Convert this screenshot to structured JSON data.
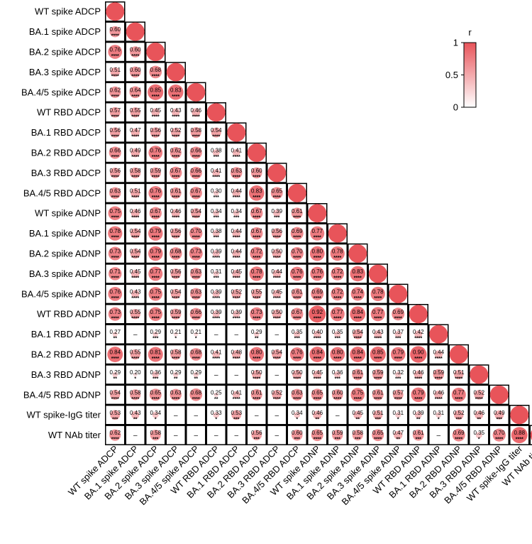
{
  "chart_data": {
    "type": "heatmap",
    "variables": [
      "WT spike ADCP",
      "BA.1 spike ADCP",
      "BA.2 spike ADCP",
      "BA.3 spike ADCP",
      "BA.4/5 spike ADCP",
      "WT RBD ADCP",
      "BA.1 RBD ADCP",
      "BA.2 RBD ADCP",
      "BA.3 RBD ADCP",
      "BA.4/5 RBD ADCP",
      "WT spike ADNP",
      "BA.1 spike ADNP",
      "BA.2 spike ADNP",
      "BA.3 spike ADNP",
      "BA.4/5 spike ADNP",
      "WT RBD ADNP",
      "BA.1 RBD ADNP",
      "BA.2 RBD ADNP",
      "BA.3 RBD ADNP",
      "BA.4/5 RBD ADNP",
      "WT spike-IgG titer",
      "WT NAb titer"
    ],
    "rows": [
      {
        "label": "WT spike ADCP",
        "values": [
          1
        ],
        "sig": [
          ""
        ],
        "text": [
          ""
        ]
      },
      {
        "label": "BA.1 spike ADCP",
        "values": [
          0.6,
          1
        ],
        "sig": [
          "****",
          ""
        ],
        "text": [
          "0.60",
          ""
        ]
      },
      {
        "label": "BA.2 spike ADCP",
        "values": [
          0.76,
          0.6,
          1
        ],
        "sig": [
          "****",
          "****",
          ""
        ],
        "text": [
          "0.76",
          "0.60",
          ""
        ]
      },
      {
        "label": "BA.3 spike ADCP",
        "values": [
          0.51,
          0.6,
          0.68,
          1
        ],
        "sig": [
          "****",
          "****",
          "****",
          ""
        ],
        "text": [
          "0.51",
          "0.60",
          "0.68",
          ""
        ]
      },
      {
        "label": "BA.4/5 spike ADCP",
        "values": [
          0.62,
          0.64,
          0.85,
          0.83,
          1
        ],
        "sig": [
          "****",
          "****",
          "****",
          "****",
          ""
        ],
        "text": [
          "0.62",
          "0.64",
          "0.85",
          "0.83",
          ""
        ]
      },
      {
        "label": "WT RBD ADCP",
        "values": [
          0.57,
          0.55,
          0.45,
          0.43,
          0.46,
          1
        ],
        "sig": [
          "****",
          "****",
          "****",
          "****",
          "****",
          ""
        ],
        "text": [
          "0.57",
          "0.55",
          "0.45",
          "0.43",
          "0.46",
          ""
        ]
      },
      {
        "label": "BA.1 RBD ADCP",
        "values": [
          0.56,
          0.47,
          0.56,
          0.52,
          0.58,
          0.54,
          1
        ],
        "sig": [
          "****",
          "****",
          "****",
          "****",
          "****",
          "****",
          ""
        ],
        "text": [
          "0.56",
          "0.47",
          "0.56",
          "0.52",
          "0.58",
          "0.54",
          ""
        ]
      },
      {
        "label": "BA.2 RBD ADCP",
        "values": [
          0.66,
          0.49,
          0.76,
          0.62,
          0.66,
          0.38,
          0.41,
          1
        ],
        "sig": [
          "****",
          "****",
          "****",
          "****",
          "****",
          "***",
          "****",
          ""
        ],
        "text": [
          "0.66",
          "0.49",
          "0.76",
          "0.62",
          "0.66",
          "0.38",
          "0.41",
          ""
        ]
      },
      {
        "label": "BA.3 RBD ADCP",
        "values": [
          0.56,
          0.58,
          0.59,
          0.67,
          0.66,
          0.41,
          0.63,
          0.6,
          1
        ],
        "sig": [
          "****",
          "****",
          "****",
          "****",
          "****",
          "****",
          "****",
          "****",
          ""
        ],
        "text": [
          "0.56",
          "0.58",
          "0.59",
          "0.67",
          "0.66",
          "0.41",
          "0.63",
          "0.60",
          ""
        ]
      },
      {
        "label": "BA.4/5 RBD ADCP",
        "values": [
          0.63,
          0.51,
          0.76,
          0.61,
          0.67,
          0.3,
          0.44,
          0.83,
          0.65,
          1
        ],
        "sig": [
          "****",
          "****",
          "****",
          "****",
          "****",
          "***",
          "****",
          "****",
          "****",
          ""
        ],
        "text": [
          "0.63",
          "0.51",
          "0.76",
          "0.61",
          "0.67",
          "0.30",
          "0.44",
          "0.83",
          "0.65",
          ""
        ]
      },
      {
        "label": "WT spike ADNP",
        "values": [
          0.75,
          0.46,
          0.67,
          0.46,
          0.54,
          0.34,
          0.34,
          0.67,
          0.39,
          0.61,
          1
        ],
        "sig": [
          "****",
          "****",
          "****",
          "****",
          "****",
          "***",
          "***",
          "****",
          "***",
          "****",
          ""
        ],
        "text": [
          "0.75",
          "0.46",
          "0.67",
          "0.46",
          "0.54",
          "0.34",
          "0.34",
          "0.67",
          "0.39",
          "0.61",
          ""
        ]
      },
      {
        "label": "BA.1 spike ADNP",
        "values": [
          0.78,
          0.54,
          0.79,
          0.56,
          0.7,
          0.38,
          0.44,
          0.67,
          0.56,
          0.69,
          0.77,
          1
        ],
        "sig": [
          "****",
          "****",
          "****",
          "****",
          "****",
          "***",
          "****",
          "****",
          "****",
          "****",
          "****",
          ""
        ],
        "text": [
          "0.78",
          "0.54",
          "0.79",
          "0.56",
          "0.70",
          "0.38",
          "0.44",
          "0.67",
          "0.56",
          "0.69",
          "0.77",
          ""
        ]
      },
      {
        "label": "BA.2 spike ADNP",
        "values": [
          0.73,
          0.54,
          0.79,
          0.68,
          0.73,
          0.39,
          0.44,
          0.72,
          0.5,
          0.7,
          0.8,
          0.78,
          1
        ],
        "sig": [
          "****",
          "****",
          "****",
          "****",
          "****",
          "****",
          "****",
          "****",
          "****",
          "****",
          "****",
          "****",
          ""
        ],
        "text": [
          "0.73",
          "0.54",
          "0.79",
          "0.68",
          "0.73",
          "0.39",
          "0.44",
          "0.72",
          "0.50",
          "0.70",
          "0.80",
          "0.78",
          ""
        ]
      },
      {
        "label": "BA.3 spike ADNP",
        "values": [
          0.71,
          0.45,
          0.77,
          0.56,
          0.63,
          0.31,
          0.45,
          0.78,
          0.44,
          0.76,
          0.76,
          0.72,
          0.83,
          1
        ],
        "sig": [
          "****",
          "****",
          "****",
          "****",
          "****",
          "***",
          "****",
          "****",
          "****",
          "****",
          "****",
          "****",
          "****",
          ""
        ],
        "text": [
          "0.71",
          "0.45",
          "0.77",
          "0.56",
          "0.63",
          "0.31",
          "0.45",
          "0.78",
          "0.44",
          "0.76",
          "0.76",
          "0.72",
          "0.83",
          ""
        ]
      },
      {
        "label": "BA.4/5 spike ADNP",
        "values": [
          0.76,
          0.43,
          0.75,
          0.54,
          0.63,
          0.39,
          0.52,
          0.55,
          0.45,
          0.61,
          0.69,
          0.72,
          0.74,
          0.78,
          1
        ],
        "sig": [
          "****",
          "****",
          "****",
          "****",
          "****",
          "****",
          "****",
          "****",
          "****",
          "****",
          "****",
          "****",
          "****",
          "****",
          ""
        ],
        "text": [
          "0.76",
          "0.43",
          "0.75",
          "0.54",
          "0.63",
          "0.39",
          "0.52",
          "0.55",
          "0.45",
          "0.61",
          "0.69",
          "0.72",
          "0.74",
          "0.78",
          ""
        ]
      },
      {
        "label": "WT RBD ADNP",
        "values": [
          0.73,
          0.55,
          0.75,
          0.59,
          0.66,
          0.39,
          0.39,
          0.73,
          0.5,
          0.67,
          0.92,
          0.77,
          0.84,
          0.77,
          0.69,
          1
        ],
        "sig": [
          "****",
          "****",
          "****",
          "****",
          "****",
          "****",
          "****",
          "****",
          "****",
          "****",
          "****",
          "****",
          "****",
          "****",
          "****",
          ""
        ],
        "text": [
          "0.73",
          "0.55",
          "0.75",
          "0.59",
          "0.66",
          "0.39",
          "0.39",
          "0.73",
          "0.50",
          "0.67",
          "0.92",
          "0.77",
          "0.84",
          "0.77",
          "0.69",
          ""
        ]
      },
      {
        "label": "BA.1 RBD ADNP",
        "values": [
          0.27,
          null,
          0.29,
          0.21,
          0.21,
          null,
          null,
          0.29,
          null,
          0.35,
          0.4,
          0.35,
          0.54,
          0.43,
          0.37,
          0.42,
          1
        ],
        "sig": [
          "**",
          "",
          "***",
          "*",
          "*",
          "",
          "",
          "**",
          "",
          "***",
          "****",
          "***",
          "****",
          "****",
          "***",
          "****",
          ""
        ],
        "text": [
          "0.27",
          "–",
          "0.29",
          "0.21",
          "0.21",
          "–",
          "–",
          "0.29",
          "–",
          "0.35",
          "0.40",
          "0.35",
          "0.54",
          "0.43",
          "0.37",
          "0.42",
          ""
        ]
      },
      {
        "label": "BA.2 RBD ADNP",
        "values": [
          0.84,
          0.55,
          0.81,
          0.58,
          0.68,
          0.41,
          0.48,
          0.8,
          0.54,
          0.76,
          0.84,
          0.8,
          0.84,
          0.85,
          0.79,
          0.9,
          0.44,
          1
        ],
        "sig": [
          "****",
          "****",
          "****",
          "****",
          "****",
          "****",
          "****",
          "****",
          "****",
          "****",
          "****",
          "****",
          "****",
          "****",
          "****",
          "****",
          "****",
          ""
        ],
        "text": [
          "0.84",
          "0.55",
          "0.81",
          "0.58",
          "0.68",
          "0.41",
          "0.48",
          "0.80",
          "0.54",
          "0.76",
          "0.84",
          "0.80",
          "0.84",
          "0.85",
          "0.79",
          "0.90",
          "0.44",
          ""
        ]
      },
      {
        "label": "BA.3 RBD ADNP",
        "values": [
          0.29,
          0.2,
          0.36,
          0.29,
          0.29,
          null,
          null,
          0.5,
          null,
          0.5,
          0.45,
          0.36,
          0.61,
          0.59,
          0.32,
          0.46,
          0.59,
          0.51,
          1
        ],
        "sig": [
          "**",
          "*",
          "***",
          "**",
          "**",
          "",
          "",
          "****",
          "",
          "****",
          "****",
          "***",
          "****",
          "****",
          "***",
          "****",
          "****",
          "****",
          ""
        ],
        "text": [
          "0.29",
          "0.20",
          "0.36",
          "0.29",
          "0.29",
          "–",
          "–",
          "0.50",
          "–",
          "0.50",
          "0.45",
          "0.36",
          "0.61",
          "0.59",
          "0.32",
          "0.46",
          "0.59",
          "0.51",
          ""
        ]
      },
      {
        "label": "BA.4/5 RBD ADNP",
        "values": [
          0.54,
          0.58,
          0.65,
          0.63,
          0.68,
          0.25,
          0.41,
          0.61,
          0.52,
          0.63,
          0.65,
          0.6,
          0.75,
          0.61,
          0.57,
          0.79,
          0.46,
          0.77,
          0.52,
          1
        ],
        "sig": [
          "****",
          "****",
          "****",
          "****",
          "****",
          "**",
          "****",
          "****",
          "****",
          "****",
          "****",
          "****",
          "****",
          "****",
          "****",
          "****",
          "****",
          "****",
          "****",
          ""
        ],
        "text": [
          "0.54",
          "0.58",
          "0.65",
          "0.63",
          "0.68",
          "0.25",
          "0.41",
          "0.61",
          "0.52",
          "0.63",
          "0.65",
          "0.60",
          "0.75",
          "0.61",
          "0.57",
          "0.79",
          "0.46",
          "0.77",
          "0.52",
          ""
        ]
      },
      {
        "label": "WT spike-IgG titer",
        "values": [
          0.53,
          0.43,
          0.34,
          null,
          null,
          0.33,
          0.53,
          null,
          null,
          0.34,
          0.46,
          null,
          0.45,
          0.51,
          0.31,
          0.39,
          0.31,
          0.52,
          0.46,
          0.49,
          1
        ],
        "sig": [
          "***",
          "**",
          "*",
          "",
          "",
          "*",
          "***",
          "",
          "",
          "*",
          "**",
          "",
          "**",
          "***",
          "*",
          "**",
          "*",
          "***",
          "**",
          "***",
          ""
        ],
        "text": [
          "0.53",
          "0.43",
          "0.34",
          "–",
          "–",
          "0.33",
          "0.53",
          "–",
          "–",
          "0.34",
          "0.46",
          "–",
          "0.45",
          "0.51",
          "0.31",
          "0.39",
          "0.31",
          "0.52",
          "0.46",
          "0.49",
          ""
        ]
      },
      {
        "label": "WT NAb titer",
        "values": [
          0.62,
          null,
          0.58,
          null,
          null,
          null,
          null,
          0.56,
          null,
          0.6,
          0.65,
          0.59,
          0.58,
          0.65,
          0.47,
          0.61,
          null,
          0.69,
          0.35,
          0.7,
          0.88,
          1
        ],
        "sig": [
          "****",
          "",
          "***",
          "",
          "",
          "",
          "",
          "***",
          "",
          "***",
          "****",
          "***",
          "***",
          "****",
          "**",
          "***",
          "",
          "****",
          "*",
          "****",
          "****",
          ""
        ],
        "text": [
          "0.62",
          "–",
          "0.58",
          "–",
          "–",
          "–",
          "–",
          "0.56",
          "–",
          "0.60",
          "0.65",
          "0.59",
          "0.58",
          "0.65",
          "0.47",
          "0.61",
          "–",
          "0.69",
          "0.35",
          "0.70",
          "0.88",
          ""
        ]
      }
    ],
    "legend": {
      "title": "r",
      "ticks": [
        "1",
        "0.5",
        "0"
      ],
      "range": [
        0,
        1
      ]
    },
    "colors": {
      "high": "#e8545a",
      "low": "#ffffff"
    }
  }
}
